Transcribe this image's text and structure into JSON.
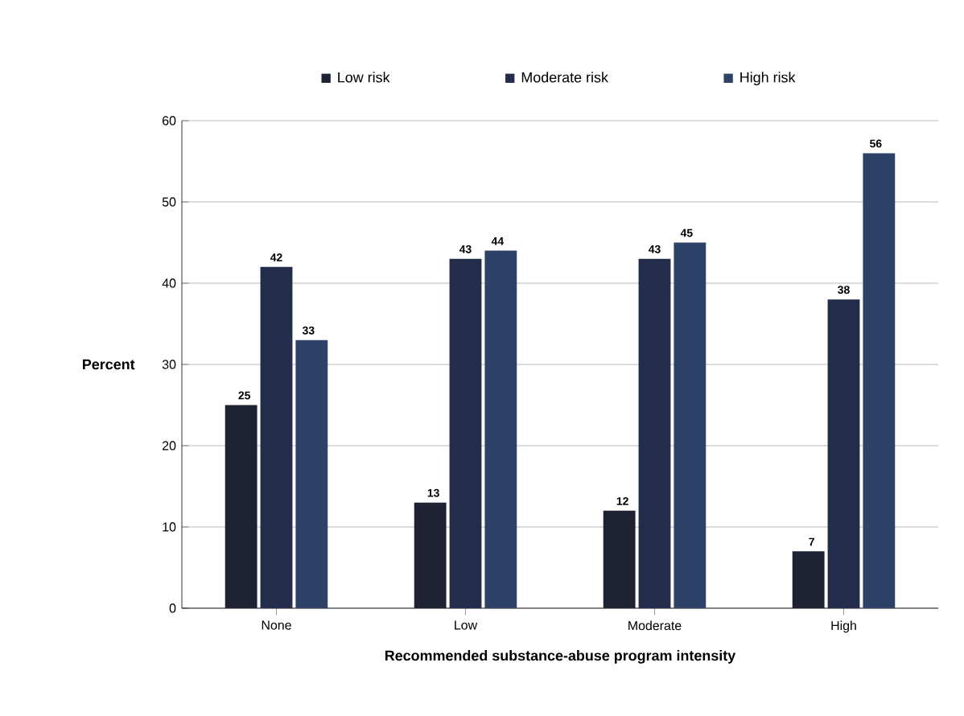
{
  "chart_data": {
    "type": "bar",
    "xlabel": "Recommended substance-abuse program intensity",
    "ylabel": "Percent",
    "categories": [
      "None",
      "Low",
      "Moderate",
      "High"
    ],
    "series": [
      {
        "name": "Low risk",
        "color": "#1e2233",
        "values": [
          25,
          13,
          12,
          7
        ]
      },
      {
        "name": "Moderate risk",
        "color": "#232d4b",
        "values": [
          42,
          43,
          43,
          38
        ]
      },
      {
        "name": "High risk",
        "color": "#2e4166",
        "values": [
          33,
          44,
          45,
          56
        ]
      }
    ],
    "ylim": [
      0,
      60
    ],
    "yticks": [
      0,
      10,
      20,
      30,
      40,
      50,
      60
    ],
    "grid": "y",
    "legend": "top",
    "data_labels": true
  }
}
